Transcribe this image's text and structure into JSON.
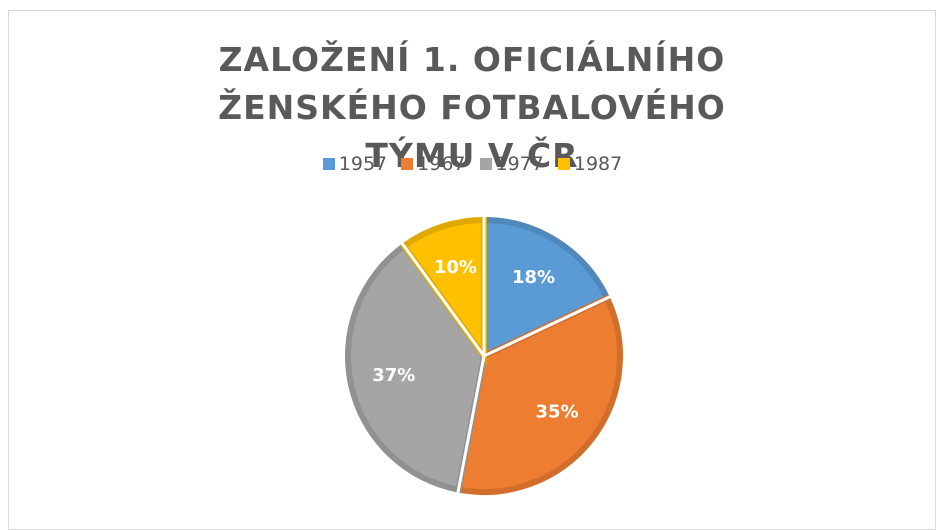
{
  "chart_data": {
    "type": "pie",
    "title": "ZALOŽENÍ 1. OFICIÁLNÍHO ŽENSKÉHO FOTBALOVÉHO TÝMU V ČR",
    "categories": [
      "1957",
      "1967",
      "1977",
      "1987"
    ],
    "values": [
      18,
      35,
      37,
      10
    ],
    "value_labels": [
      "18%",
      "35%",
      "37%",
      "10%"
    ],
    "colors": [
      "#5b9bd5",
      "#ed7d31",
      "#a5a5a5",
      "#ffc000"
    ],
    "legend": "top"
  }
}
